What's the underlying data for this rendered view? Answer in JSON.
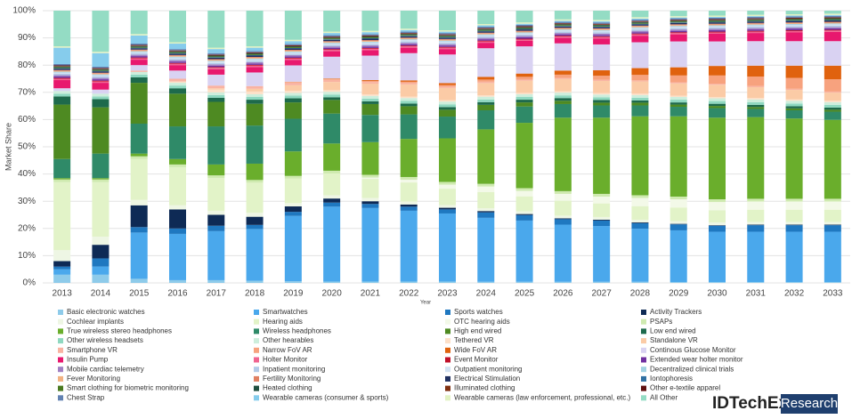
{
  "chart_data": {
    "type": "stacked_bar",
    "x_label": "Year",
    "y_label": "Market Share",
    "categories": [
      "2013",
      "2014",
      "2015",
      "2016",
      "2017",
      "2018",
      "2019",
      "2020",
      "2021",
      "2022",
      "2023",
      "2024",
      "2025",
      "2026",
      "2027",
      "2028",
      "2029",
      "2030",
      "2031",
      "2032",
      "2033"
    ],
    "ylim": [
      0,
      100
    ],
    "yticks": [
      {
        "value": 0,
        "label": "0%"
      },
      {
        "value": 10,
        "label": "10%"
      },
      {
        "value": 20,
        "label": "20%"
      },
      {
        "value": 30,
        "label": "30%"
      },
      {
        "value": 40,
        "label": "40%"
      },
      {
        "value": 50,
        "label": "50%"
      },
      {
        "value": 60,
        "label": "60%"
      },
      {
        "value": 70,
        "label": "70%"
      },
      {
        "value": 80,
        "label": "80%"
      },
      {
        "value": 90,
        "label": "90%"
      },
      {
        "value": 100,
        "label": "100%"
      }
    ],
    "grid": true,
    "series": [
      {
        "name": "Basic electronic watches",
        "color": "#8ecbea",
        "values": [
          3,
          3,
          1.5,
          1,
          1,
          0.8,
          0.6,
          0.5,
          0.5,
          0.5,
          0.5,
          0.4,
          0.4,
          0.4,
          0.4,
          0.4,
          0.3,
          0.3,
          0.3,
          0.3,
          0.3
        ]
      },
      {
        "name": "Smartwatches",
        "color": "#4aa8ec",
        "values": [
          2,
          3,
          17,
          17,
          18,
          19,
          24,
          27.5,
          27,
          26,
          25,
          23.5,
          22.5,
          21,
          20.5,
          19.5,
          19,
          18.5,
          18.5,
          18.5,
          18.5
        ]
      },
      {
        "name": "Sports watches",
        "color": "#1f78c0",
        "values": [
          1,
          3,
          2,
          2,
          2,
          1.5,
          1.5,
          1.5,
          1.5,
          1.5,
          1.5,
          2,
          2,
          2,
          2,
          2,
          2.2,
          2.2,
          2.4,
          2.4,
          2.4
        ]
      },
      {
        "name": "Activity Trackers",
        "color": "#0e2a55",
        "values": [
          2,
          5,
          8,
          7,
          4,
          3,
          2,
          1.5,
          1,
          0.8,
          0.6,
          0.5,
          0.4,
          0.3,
          0.3,
          0.3,
          0.2,
          0.2,
          0.2,
          0.2,
          0.2
        ]
      },
      {
        "name": "Cochlear implants",
        "color": "#eef6e4",
        "values": [
          4,
          3,
          2,
          1.5,
          1.5,
          1.5,
          1.2,
          1.2,
          1.2,
          1.1,
          1,
          1,
          1,
          1,
          1,
          1,
          1,
          1,
          1,
          1,
          1
        ]
      },
      {
        "name": "Hearing aids",
        "color": "#e2f3c8",
        "values": [
          25,
          20,
          15,
          14,
          12,
          11,
          9,
          8,
          7,
          7,
          6,
          6,
          5.5,
          5.5,
          5,
          5,
          5,
          4.5,
          4.5,
          4.5,
          4.5
        ]
      },
      {
        "name": "OTC hearing aids",
        "color": "#f3f9e8",
        "values": [
          0,
          0,
          0,
          0,
          0,
          0,
          0,
          0,
          0.5,
          1,
          1.5,
          2,
          2,
          2.5,
          2.5,
          3,
          3,
          3,
          3,
          3,
          3
        ]
      },
      {
        "name": "PSAPs",
        "color": "#cfeab0",
        "values": [
          1,
          1,
          1,
          1,
          1,
          1,
          1,
          1,
          1,
          1,
          1,
          1,
          1,
          1,
          1,
          1,
          1,
          1,
          1,
          1,
          1
        ]
      },
      {
        "name": "True wireless stereo headphones",
        "color": "#6aae2c",
        "values": [
          0.5,
          0.5,
          1,
          2,
          4,
          6,
          9,
          10,
          12,
          14,
          16,
          20,
          24,
          27,
          28,
          29,
          29.5,
          30,
          30,
          29.5,
          29
        ]
      },
      {
        "name": "Wireless headphones",
        "color": "#2f8a68",
        "values": [
          7,
          9,
          11,
          12,
          14,
          14,
          12,
          11,
          10,
          9,
          8,
          7,
          6,
          5,
          4.5,
          4,
          3.5,
          3.5,
          3,
          3,
          3
        ]
      },
      {
        "name": "High end wired",
        "color": "#4e8a22",
        "values": [
          20,
          17,
          15,
          12,
          9,
          8,
          6,
          5,
          4,
          3,
          2.5,
          2,
          1.5,
          1.2,
          1,
          1,
          0.8,
          0.8,
          0.7,
          0.7,
          0.7
        ]
      },
      {
        "name": "Low end wired",
        "color": "#1e6a4c",
        "values": [
          3,
          3,
          2,
          2,
          1.5,
          1.5,
          1.5,
          1,
          1,
          1,
          1,
          1,
          1,
          1,
          1,
          0.8,
          0.8,
          0.8,
          0.8,
          0.8,
          0.8
        ]
      },
      {
        "name": "Other wireless headsets",
        "color": "#8fd8c0",
        "values": [
          1,
          1,
          1,
          1,
          1,
          1,
          1,
          1,
          1,
          1,
          1,
          1,
          1,
          1,
          1,
          1,
          1,
          1,
          1,
          1,
          1
        ]
      },
      {
        "name": "Other hearables",
        "color": "#cdeedc",
        "values": [
          1,
          1,
          1,
          1,
          1,
          1,
          1,
          1,
          1,
          1,
          1,
          1,
          1,
          1,
          1,
          1,
          1,
          1,
          1,
          1,
          1
        ]
      },
      {
        "name": "Tethered VR",
        "color": "#fde0c8",
        "values": [
          0,
          0,
          0,
          0.5,
          1,
          1,
          0.8,
          0.6,
          0.5,
          0.5,
          0.5,
          0.5,
          0.5,
          0.5,
          0.5,
          0.5,
          0.5,
          0.5,
          0.5,
          0.5,
          0.5
        ]
      },
      {
        "name": "Standalone VR",
        "color": "#fbcba6",
        "values": [
          0,
          0,
          0,
          0,
          0.5,
          1,
          2,
          3,
          4,
          4.5,
          4.5,
          4.5,
          4.5,
          4.5,
          4.5,
          4.5,
          4.5,
          4.5,
          4,
          3.5,
          3
        ]
      },
      {
        "name": "Smartphone VR",
        "color": "#f9b3a2",
        "values": [
          0,
          0,
          0.5,
          1,
          1,
          1,
          1,
          0.8,
          0.6,
          0.5,
          0.5,
          0.5,
          0.4,
          0.4,
          0.4,
          0.4,
          0.4,
          0.4,
          0.4,
          0.4,
          0.4
        ]
      },
      {
        "name": "Narrow FoV AR",
        "color": "#f7a27e",
        "values": [
          0,
          0,
          0,
          0,
          0,
          0,
          0.2,
          0.3,
          0.4,
          0.5,
          0.6,
          0.8,
          1,
          1.2,
          1.5,
          2,
          2.5,
          3,
          3.5,
          4,
          4.5
        ]
      },
      {
        "name": "Wide FoV AR",
        "color": "#e0620e",
        "values": [
          0,
          0,
          0,
          0,
          0,
          0,
          0.1,
          0.2,
          0.3,
          0.5,
          0.7,
          1,
          1.2,
          1.5,
          2,
          2.5,
          3,
          3.5,
          4,
          4.5,
          5
        ]
      },
      {
        "name": "Continous Glucose Monitor",
        "color": "#d9d2f2",
        "values": [
          1,
          1.5,
          2,
          3,
          4,
          5,
          6,
          8,
          9,
          10,
          10.5,
          10.5,
          10,
          10,
          9.5,
          9.5,
          9.5,
          9,
          9,
          9,
          9
        ]
      },
      {
        "name": "Insulin Pump",
        "color": "#e8186e",
        "values": [
          3,
          2.5,
          2,
          2,
          2,
          2,
          2,
          2,
          2,
          2,
          2,
          2,
          2,
          2,
          2.2,
          2.4,
          2.6,
          2.8,
          3,
          3.2,
          3.4
        ]
      },
      {
        "name": "Holter Monitor",
        "color": "#f06490",
        "values": [
          0.5,
          0.5,
          0.5,
          0.5,
          0.5,
          0.5,
          0.5,
          0.5,
          0.5,
          0.5,
          0.5,
          0.5,
          0.5,
          0.5,
          0.5,
          0.5,
          0.5,
          0.5,
          0.5,
          0.5,
          0.5
        ]
      },
      {
        "name": "Event Monitor",
        "color": "#c0102a",
        "values": [
          0.3,
          0.3,
          0.3,
          0.3,
          0.3,
          0.3,
          0.3,
          0.3,
          0.3,
          0.3,
          0.3,
          0.3,
          0.3,
          0.3,
          0.3,
          0.3,
          0.3,
          0.3,
          0.3,
          0.3,
          0.3
        ]
      },
      {
        "name": "Extended wear holter monitor",
        "color": "#7030a0",
        "values": [
          0.5,
          0.5,
          0.5,
          0.5,
          0.5,
          0.5,
          0.5,
          0.5,
          0.5,
          0.5,
          0.5,
          0.5,
          0.5,
          0.5,
          0.5,
          0.5,
          0.5,
          0.5,
          0.5,
          0.5,
          0.5
        ]
      },
      {
        "name": "Mobile cardiac telemetry",
        "color": "#a080c2",
        "values": [
          0.5,
          0.5,
          0.5,
          0.5,
          0.5,
          0.5,
          0.5,
          0.5,
          0.5,
          0.5,
          0.5,
          0.5,
          0.5,
          0.5,
          0.5,
          0.5,
          0.5,
          0.5,
          0.5,
          0.5,
          0.5
        ]
      },
      {
        "name": "Inpatient monitoring",
        "color": "#b2cbe8",
        "values": [
          0.5,
          0.5,
          0.5,
          0.5,
          0.5,
          0.5,
          0.5,
          0.5,
          0.5,
          0.5,
          0.5,
          0.5,
          0.5,
          0.5,
          0.5,
          0.5,
          0.5,
          0.5,
          0.5,
          0.5,
          0.5
        ]
      },
      {
        "name": "Outpatient monitoring",
        "color": "#d2e2f2",
        "values": [
          0.5,
          0.5,
          0.5,
          0.5,
          0.5,
          0.5,
          0.5,
          0.5,
          0.5,
          0.5,
          0.5,
          0.5,
          0.5,
          0.5,
          0.5,
          0.5,
          0.5,
          0.5,
          0.5,
          0.5,
          0.5
        ]
      },
      {
        "name": "Decentralized clinical trials",
        "color": "#a2d2e2",
        "values": [
          0.3,
          0.3,
          0.3,
          0.3,
          0.3,
          0.3,
          0.3,
          0.3,
          0.3,
          0.3,
          0.3,
          0.3,
          0.3,
          0.3,
          0.3,
          0.3,
          0.3,
          0.3,
          0.3,
          0.3,
          0.3
        ]
      },
      {
        "name": "Fever Monitoring",
        "color": "#f2b282",
        "values": [
          0.3,
          0.3,
          0.3,
          0.3,
          0.3,
          0.3,
          0.3,
          0.3,
          0.3,
          0.3,
          0.3,
          0.3,
          0.3,
          0.3,
          0.3,
          0.3,
          0.3,
          0.3,
          0.3,
          0.3,
          0.3
        ]
      },
      {
        "name": "Fertility Monitoring",
        "color": "#e08062",
        "values": [
          0.3,
          0.3,
          0.3,
          0.3,
          0.3,
          0.3,
          0.3,
          0.3,
          0.3,
          0.3,
          0.3,
          0.3,
          0.3,
          0.3,
          0.3,
          0.3,
          0.3,
          0.3,
          0.3,
          0.3,
          0.3
        ]
      },
      {
        "name": "Electrical Stimulation",
        "color": "#203060",
        "values": [
          0.5,
          0.5,
          0.5,
          0.5,
          0.5,
          0.5,
          0.5,
          0.5,
          0.5,
          0.5,
          0.5,
          0.5,
          0.5,
          0.5,
          0.5,
          0.5,
          0.5,
          0.5,
          0.5,
          0.5,
          0.5
        ]
      },
      {
        "name": "Iontophoresis",
        "color": "#3070a2",
        "values": [
          0.2,
          0.2,
          0.2,
          0.2,
          0.2,
          0.2,
          0.2,
          0.2,
          0.2,
          0.2,
          0.2,
          0.2,
          0.2,
          0.2,
          0.2,
          0.2,
          0.2,
          0.2,
          0.2,
          0.2,
          0.2
        ]
      },
      {
        "name": "Smart clothing for biometric monitoring",
        "color": "#4a7a20",
        "values": [
          0.3,
          0.3,
          0.3,
          0.3,
          0.3,
          0.3,
          0.3,
          0.3,
          0.3,
          0.3,
          0.3,
          0.3,
          0.3,
          0.3,
          0.3,
          0.3,
          0.3,
          0.3,
          0.3,
          0.3,
          0.3
        ]
      },
      {
        "name": "Heated clothing",
        "color": "#205040",
        "values": [
          0.3,
          0.3,
          0.3,
          0.3,
          0.3,
          0.3,
          0.3,
          0.3,
          0.3,
          0.3,
          0.3,
          0.3,
          0.3,
          0.3,
          0.3,
          0.3,
          0.3,
          0.3,
          0.3,
          0.3,
          0.3
        ]
      },
      {
        "name": "Illuminated clothing",
        "color": "#803010",
        "values": [
          0.2,
          0.2,
          0.2,
          0.2,
          0.2,
          0.2,
          0.2,
          0.2,
          0.2,
          0.2,
          0.2,
          0.2,
          0.2,
          0.2,
          0.2,
          0.2,
          0.2,
          0.2,
          0.2,
          0.2,
          0.2
        ]
      },
      {
        "name": "Other e-textile apparel",
        "color": "#601010",
        "values": [
          0.2,
          0.2,
          0.2,
          0.2,
          0.2,
          0.2,
          0.2,
          0.2,
          0.2,
          0.2,
          0.2,
          0.2,
          0.2,
          0.2,
          0.2,
          0.2,
          0.2,
          0.2,
          0.2,
          0.2,
          0.2
        ]
      },
      {
        "name": "Chest Strap",
        "color": "#6282b2",
        "values": [
          0.5,
          0.5,
          0.5,
          0.5,
          0.5,
          0.5,
          0.5,
          0.5,
          0.5,
          0.5,
          0.5,
          0.5,
          0.5,
          0.5,
          0.5,
          0.5,
          0.5,
          0.5,
          0.5,
          0.5,
          0.5
        ]
      },
      {
        "name": "Wearable cameras (consumer & sports)",
        "color": "#86ccec",
        "values": [
          6,
          5,
          3,
          2,
          1.5,
          1.2,
          1,
          0.8,
          0.7,
          0.6,
          0.5,
          0.5,
          0.4,
          0.4,
          0.4,
          0.4,
          0.3,
          0.3,
          0.3,
          0.3,
          0.3
        ]
      },
      {
        "name": "Wearable cameras (law enforcement, professional, etc.)",
        "color": "#e2f2c2",
        "values": [
          0.5,
          0.5,
          0.5,
          0.5,
          0.5,
          0.5,
          0.5,
          0.5,
          0.5,
          0.5,
          0.5,
          0.5,
          0.5,
          0.5,
          0.5,
          0.5,
          0.5,
          0.5,
          0.5,
          0.5,
          0.5
        ]
      },
      {
        "name": "All Other",
        "color": "#94dcc4",
        "values": [
          13.1,
          15.1,
          8.6,
          11.6,
          13.6,
          13.1,
          10.7,
          7.7,
          7.4,
          6.6,
          7.2,
          4.9,
          4.3,
          3.2,
          3.4,
          2.4,
          2.0,
          1.8,
          1.5,
          1.3,
          1.1
        ]
      }
    ]
  },
  "logo": {
    "name": "IDTechEx",
    "tag": "Research"
  }
}
